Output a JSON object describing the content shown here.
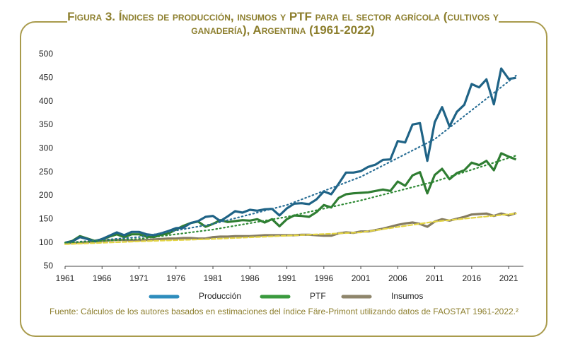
{
  "chart_data": {
    "type": "line",
    "title": "Figura 3. Índices de producción, insumos y PTF para el sector agrícola (cultivos y ganadería), Argentina (1961-2022)",
    "source": "Fuente: Cálculos de los autores basados en estimaciones del índice Färe-Primont utilizando datos de FAOSTAT 1961-2022.²",
    "x": [
      1961,
      1962,
      1963,
      1964,
      1965,
      1966,
      1967,
      1968,
      1969,
      1970,
      1971,
      1972,
      1973,
      1974,
      1975,
      1976,
      1977,
      1978,
      1979,
      1980,
      1981,
      1982,
      1983,
      1984,
      1985,
      1986,
      1987,
      1988,
      1989,
      1990,
      1991,
      1992,
      1993,
      1994,
      1995,
      1996,
      1997,
      1998,
      1999,
      2000,
      2001,
      2002,
      2003,
      2004,
      2005,
      2006,
      2007,
      2008,
      2009,
      2010,
      2011,
      2012,
      2013,
      2014,
      2015,
      2016,
      2017,
      2018,
      2019,
      2020,
      2021,
      2022
    ],
    "series": [
      {
        "name": "Producción",
        "color": "#1f6386",
        "legend_color": "#2e8dbd",
        "values": [
          100,
          103,
          112,
          108,
          102,
          108,
          115,
          122,
          116,
          123,
          123,
          118,
          116,
          120,
          125,
          131,
          132,
          142,
          146,
          155,
          157,
          146,
          156,
          167,
          164,
          170,
          168,
          171,
          172,
          158,
          173,
          183,
          184,
          182,
          192,
          209,
          203,
          225,
          249,
          249,
          252,
          261,
          266,
          276,
          277,
          316,
          313,
          351,
          354,
          274,
          356,
          388,
          347,
          378,
          393,
          437,
          430,
          447,
          394,
          470,
          448,
          450
        ]
      },
      {
        "name": "PTF",
        "color": "#2f7d32",
        "legend_color": "#3a9a3e",
        "values": [
          100,
          104,
          114,
          109,
          104,
          107,
          113,
          118,
          112,
          118,
          118,
          113,
          112,
          117,
          120,
          128,
          136,
          142,
          145,
          134,
          140,
          148,
          144,
          146,
          148,
          147,
          150,
          143,
          150,
          135,
          150,
          158,
          157,
          155,
          165,
          180,
          175,
          195,
          203,
          205,
          206,
          207,
          210,
          213,
          210,
          230,
          221,
          243,
          250,
          205,
          244,
          257,
          235,
          248,
          254,
          270,
          265,
          274,
          254,
          290,
          283,
          277
        ]
      },
      {
        "name": "Insumos",
        "color": "#857c62",
        "legend_color": "#8f866c",
        "values": [
          100,
          99,
          100,
          101,
          103,
          104,
          105,
          106,
          106,
          105,
          105,
          106,
          107,
          108,
          109,
          109,
          110,
          110,
          109,
          109,
          112,
          113,
          113,
          114,
          114,
          114,
          115,
          116,
          116,
          116,
          116,
          116,
          117,
          117,
          116,
          115,
          115,
          120,
          122,
          121,
          124,
          124,
          127,
          130,
          134,
          138,
          141,
          143,
          140,
          134,
          145,
          150,
          147,
          151,
          155,
          160,
          161,
          162,
          157,
          162,
          158,
          163
        ]
      }
    ],
    "trends": [
      {
        "color": "#2a6f96",
        "dash": "dotted",
        "x": [
          1961,
          1971,
          1981,
          1991,
          2001,
          2011,
          2022
        ],
        "values": [
          100,
          112,
          140,
          180,
          240,
          320,
          455
        ]
      },
      {
        "color": "#2f8a35",
        "dash": "dotted",
        "x": [
          1961,
          1971,
          1981,
          1991,
          2001,
          2011,
          2022
        ],
        "values": [
          100,
          108,
          128,
          155,
          190,
          230,
          285
        ]
      },
      {
        "color": "#e3d444",
        "dash": "dashed",
        "x": [
          1961,
          1971,
          1981,
          1991,
          2001,
          2011,
          2022
        ],
        "values": [
          97,
          103,
          108,
          115,
          122,
          145,
          162
        ]
      }
    ],
    "xlim": [
      1961,
      2023
    ],
    "ylim": [
      50,
      500
    ],
    "xticks": [
      1961,
      1966,
      1971,
      1976,
      1981,
      1986,
      1991,
      1996,
      2001,
      2006,
      2011,
      2016,
      2021
    ],
    "yticks": [
      50,
      100,
      150,
      200,
      250,
      300,
      350,
      400,
      450,
      500
    ],
    "grid": false,
    "legend": "bottom"
  }
}
